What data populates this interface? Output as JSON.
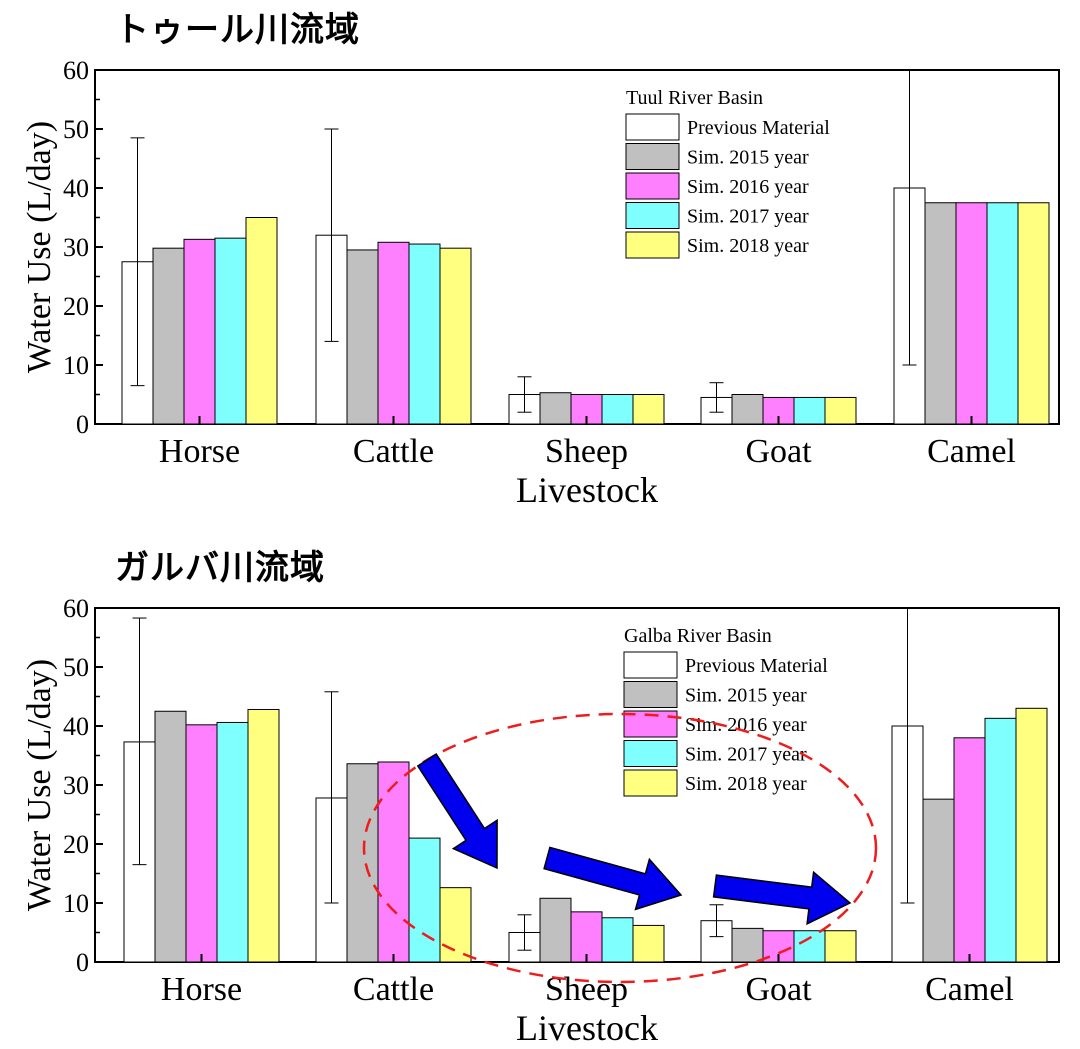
{
  "headings": [
    "トゥール川流域",
    "ガルバ川流域"
  ],
  "colors": {
    "Previous Material": "#ffffff",
    "Sim. 2015 year": "#c0c0c0",
    "Sim. 2016 year": "#ff80ff",
    "Sim. 2017 year": "#80ffff",
    "Sim. 2018 year": "#ffff80",
    "arrow": "#0000ee",
    "ellipse": "#ee1c1c"
  },
  "chart_data": [
    {
      "type": "bar",
      "title": "",
      "xlabel": "Livestock",
      "ylabel": "Water Use (L/day)",
      "ylim": [
        0,
        60
      ],
      "yticks": [
        "0",
        "10",
        "20",
        "30",
        "40",
        "50",
        "60"
      ],
      "categories": [
        "Horse",
        "Cattle",
        "Sheep",
        "Goat",
        "Camel"
      ],
      "legend_title": "Tuul River Basin",
      "legend_position": "top-right",
      "series": [
        {
          "name": "Previous Material",
          "values": [
            27.5,
            32,
            5,
            4.5,
            40
          ],
          "errors": [
            [
              6.5,
              48.5
            ],
            [
              14,
              50
            ],
            [
              2,
              8
            ],
            [
              2,
              7
            ],
            [
              10,
              60
            ]
          ]
        },
        {
          "name": "Sim. 2015 year",
          "values": [
            29.8,
            29.5,
            5.3,
            5,
            37.5
          ]
        },
        {
          "name": "Sim. 2016 year",
          "values": [
            31.3,
            30.8,
            5,
            4.5,
            37.5
          ]
        },
        {
          "name": "Sim. 2017 year",
          "values": [
            31.5,
            30.5,
            5,
            4.5,
            37.5
          ]
        },
        {
          "name": "Sim. 2018 year",
          "values": [
            35,
            29.8,
            5,
            4.5,
            37.5
          ]
        }
      ]
    },
    {
      "type": "bar",
      "title": "",
      "xlabel": "Livestock",
      "ylabel": "Water Use (L/day)",
      "ylim": [
        0,
        60
      ],
      "yticks": [
        "0",
        "10",
        "20",
        "30",
        "40",
        "50",
        "60"
      ],
      "categories": [
        "Horse",
        "Cattle",
        "Sheep",
        "Goat",
        "Camel"
      ],
      "legend_title": "Galba River Basin",
      "legend_position": "top-right",
      "series": [
        {
          "name": "Previous Material",
          "values": [
            37.3,
            27.8,
            5,
            7,
            40
          ],
          "errors": [
            [
              16.5,
              58.3
            ],
            [
              10,
              45.8
            ],
            [
              2,
              8
            ],
            [
              4.3,
              9.7
            ],
            [
              10,
              60
            ]
          ]
        },
        {
          "name": "Sim. 2015 year",
          "values": [
            42.5,
            33.6,
            10.8,
            5.7,
            27.6
          ]
        },
        {
          "name": "Sim. 2016 year",
          "values": [
            40.2,
            33.9,
            8.5,
            5.3,
            38
          ]
        },
        {
          "name": "Sim. 2017 year",
          "values": [
            40.6,
            21,
            7.5,
            5.3,
            41.3
          ]
        },
        {
          "name": "Sim. 2018 year",
          "values": [
            42.8,
            12.6,
            6.2,
            5.3,
            43
          ]
        }
      ]
    }
  ]
}
